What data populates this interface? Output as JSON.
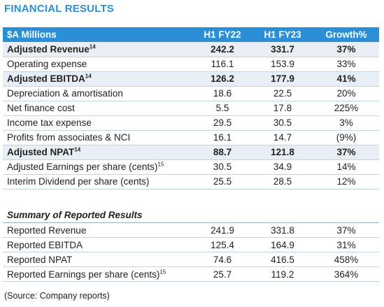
{
  "title": "FINANCIAL RESULTS",
  "table": {
    "headers": [
      "$A Millions",
      "H1 FY22",
      "H1 FY23",
      "Growth%"
    ],
    "rows": [
      {
        "label": "Adjusted Revenue",
        "sup": "14",
        "v1": "242.2",
        "v2": "331.7",
        "g": "37%",
        "bold": true
      },
      {
        "label": "Operating expense",
        "sup": "",
        "v1": "116.1",
        "v2": "153.9",
        "g": "33%",
        "bold": false
      },
      {
        "label": "Adjusted EBITDA",
        "sup": "14",
        "v1": "126.2",
        "v2": "177.9",
        "g": "41%",
        "bold": true
      },
      {
        "label": "Depreciation & amortisation",
        "sup": "",
        "v1": "18.6",
        "v2": "22.5",
        "g": "20%",
        "bold": false
      },
      {
        "label": "Net finance cost",
        "sup": "",
        "v1": "5.5",
        "v2": "17.8",
        "g": "225%",
        "bold": false
      },
      {
        "label": "Income tax expense",
        "sup": "",
        "v1": "29.5",
        "v2": "30.5",
        "g": "3%",
        "bold": false
      },
      {
        "label": "Profits from associates & NCI",
        "sup": "",
        "v1": "16.1",
        "v2": "14.7",
        "g": "(9%)",
        "bold": false
      },
      {
        "label": "Adjusted NPAT",
        "sup": "14",
        "v1": "88.7",
        "v2": "121.8",
        "g": "37%",
        "bold": true
      },
      {
        "label": "Adjusted Earnings per share (cents)",
        "sup": "15",
        "v1": "30.5",
        "v2": "34.9",
        "g": "14%",
        "bold": false
      },
      {
        "label": "Interim Dividend per share (cents)",
        "sup": "",
        "v1": "25.5",
        "v2": "28.5",
        "g": "12%",
        "bold": false
      }
    ]
  },
  "reported": {
    "heading": "Summary of Reported Results",
    "rows": [
      {
        "label": "Reported Revenue",
        "sup": "",
        "v1": "241.9",
        "v2": "331.8",
        "g": "37%"
      },
      {
        "label": "Reported EBITDA",
        "sup": "",
        "v1": "125.4",
        "v2": "164.9",
        "g": "31%"
      },
      {
        "label": "Reported NPAT",
        "sup": "",
        "v1": "74.6",
        "v2": "416.5",
        "g": "458%"
      },
      {
        "label": "Reported Earnings per share (cents)",
        "sup": "15",
        "v1": "25.7",
        "v2": "119.2",
        "g": "364%"
      }
    ]
  },
  "source": "(Source: Company reports)"
}
